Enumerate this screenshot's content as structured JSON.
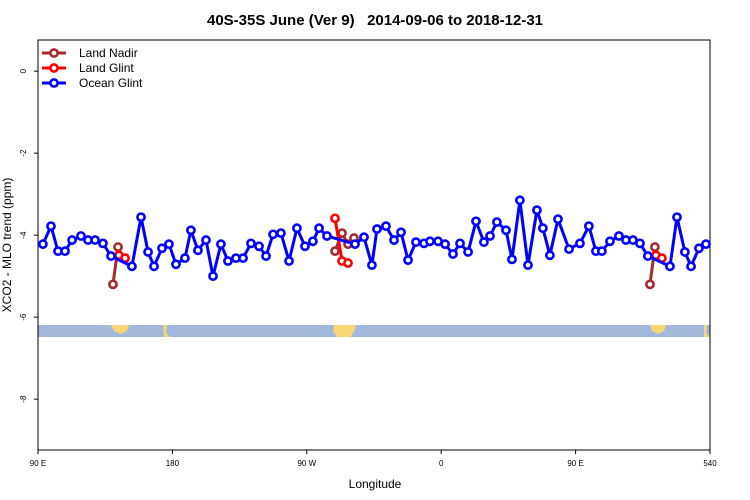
{
  "chart_data": {
    "type": "line",
    "title": "40S-35S June (Ver 9)   2014-09-06 to 2018-12-31",
    "x_label": "Longitude",
    "y_label": "XCO2 - MLO trend (ppm)",
    "xlim": [
      90,
      540
    ],
    "ylim": [
      -9.24,
      0.76
    ],
    "xticks": [
      {
        "value": 90,
        "label": "90 E"
      },
      180,
      {
        "value": 270,
        "label": "90 W"
      },
      {
        "value": 360,
        "label": "0"
      },
      {
        "value": 450,
        "label": "90 E"
      },
      540
    ],
    "yticks": [
      0,
      -2,
      -4,
      -6,
      -8
    ],
    "legend": "top-left",
    "series": [
      {
        "name": "Land Nadir",
        "color": "#a52a2a",
        "x": [
          140.2,
          143.6,
          null,
          288.9,
          293.6,
          297.6,
          301.6,
          null,
          499.8,
          503.1
        ],
        "values": [
          -5.2,
          -4.29,
          null,
          -4.39,
          -3.95,
          -4.22,
          -4.07,
          null,
          -5.2,
          -4.29
        ]
      },
      {
        "name": "Land Glint",
        "color": "#ff0000",
        "x": [
          144.2,
          148.3,
          null,
          288.9,
          293.6,
          297.6,
          null,
          503.8,
          507.8
        ],
        "values": [
          -4.49,
          -4.56,
          null,
          -3.59,
          -4.63,
          -4.68,
          null,
          -4.49,
          -4.56
        ]
      },
      {
        "name": "Ocean Glint",
        "color": "#0000ff",
        "x": [
          93.3,
          98.7,
          103.4,
          108.1,
          112.8,
          118.8,
          123.5,
          128.2,
          133.5,
          138.9,
          152.9,
          159.0,
          163.7,
          167.7,
          173.0,
          177.7,
          182.4,
          188.4,
          192.4,
          197.1,
          202.5,
          207.2,
          212.5,
          217.2,
          222.6,
          227.3,
          232.6,
          238.0,
          242.7,
          247.4,
          252.7,
          258.1,
          263.4,
          268.8,
          274.1,
          278.2,
          283.5,
          302.3,
          308.3,
          313.6,
          317.0,
          323.0,
          328.4,
          333.1,
          337.8,
          343.1,
          348.5,
          352.5,
          357.9,
          362.6,
          367.9,
          372.6,
          378.0,
          383.3,
          388.6,
          392.7,
          397.3,
          403.4,
          407.4,
          412.7,
          418.1,
          424.1,
          428.1,
          432.8,
          438.2,
          445.6,
          452.9,
          458.9,
          463.6,
          467.6,
          473.0,
          479.0,
          483.7,
          488.4,
          493.1,
          498.4,
          513.2,
          517.9,
          523.2,
          527.3,
          532.6,
          537.3
        ],
        "values": [
          -4.22,
          -3.78,
          -4.39,
          -4.39,
          -4.12,
          -4.02,
          -4.12,
          -4.12,
          -4.2,
          -4.51,
          -4.76,
          -3.56,
          -4.41,
          -4.76,
          -4.32,
          -4.22,
          -4.71,
          -4.56,
          -3.88,
          -4.37,
          -4.12,
          -5.0,
          -4.22,
          -4.63,
          -4.56,
          -4.56,
          -4.2,
          -4.27,
          -4.51,
          -3.98,
          -3.95,
          -4.63,
          -3.83,
          -4.27,
          -4.15,
          -3.83,
          -4.02,
          -4.22,
          -4.05,
          -4.73,
          -3.85,
          -3.78,
          -4.12,
          -3.93,
          -4.61,
          -4.17,
          -4.2,
          -4.15,
          -4.15,
          -4.22,
          -4.46,
          -4.2,
          -4.41,
          -3.66,
          -4.17,
          -4.02,
          -3.68,
          -3.88,
          -4.59,
          -3.15,
          -4.73,
          -3.39,
          -3.83,
          -4.49,
          -3.61,
          -4.34,
          -4.2,
          -3.78,
          -4.39,
          -4.39,
          -4.15,
          -4.02,
          -4.12,
          -4.12,
          -4.2,
          -4.51,
          -4.76,
          -3.56,
          -4.41,
          -4.76,
          -4.32,
          -4.22
        ]
      }
    ]
  }
}
